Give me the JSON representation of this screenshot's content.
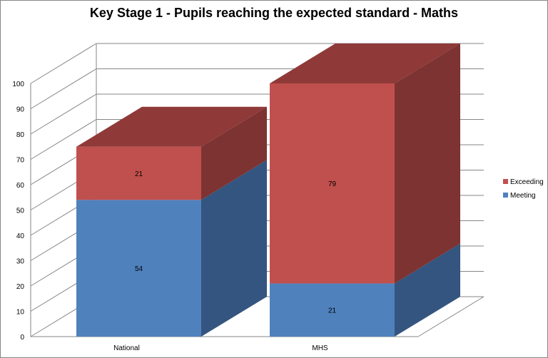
{
  "chart_data": {
    "type": "bar",
    "title": "Key Stage 1 - Pupils reaching the expected standard - Maths",
    "categories": [
      "National",
      "MHS"
    ],
    "series": [
      {
        "name": "Meeting",
        "values": [
          54,
          21
        ]
      },
      {
        "name": "Exceeding",
        "values": [
          21,
          79
        ]
      }
    ],
    "stacked": true,
    "three_d": true,
    "ylim": [
      0,
      100
    ],
    "yticks": [
      0,
      10,
      20,
      30,
      40,
      50,
      60,
      70,
      80,
      90,
      100
    ],
    "grid": true,
    "legend_position": "right",
    "colors": {
      "Meeting": {
        "front": "#4f81bd",
        "side": "#34557f",
        "top": "#4a73a8"
      },
      "Exceeding": {
        "front": "#c0504d",
        "side": "#7d3331",
        "top": "#8f3a38"
      }
    }
  }
}
